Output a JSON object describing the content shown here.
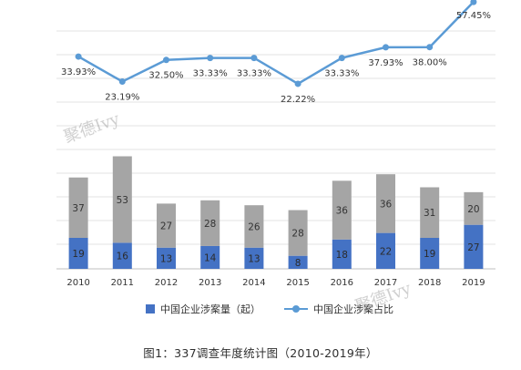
{
  "chart_data": {
    "type": "bar+line",
    "categories": [
      "2010",
      "2011",
      "2012",
      "2013",
      "2014",
      "2015",
      "2016",
      "2017",
      "2018",
      "2019"
    ],
    "series": [
      {
        "name": "中国企业涉案量（起）",
        "type": "stacked-bar-lower",
        "color": "#4472c4",
        "values": [
          19,
          16,
          13,
          14,
          13,
          8,
          18,
          22,
          19,
          27
        ]
      },
      {
        "type": "stacked-bar-upper",
        "color": "#a5a5a5",
        "values": [
          37,
          53,
          27,
          28,
          26,
          28,
          36,
          36,
          31,
          20
        ]
      },
      {
        "name": "中国企业涉案占比",
        "type": "line",
        "color": "#5b9bd5",
        "values": [
          33.93,
          23.19,
          32.5,
          33.33,
          33.33,
          22.22,
          33.33,
          37.93,
          38.0,
          57.45
        ],
        "labels": [
          "33.93%",
          "23.19%",
          "32.50%",
          "33.33%",
          "33.33%",
          "22.22%",
          "33.33%",
          "37.93%",
          "38.00%",
          "57.45%"
        ]
      }
    ],
    "grid": true,
    "legend": "bottom",
    "caption": "图1：337调查年度统计图（2010-2019年）",
    "watermark": "聚德Ivy"
  }
}
